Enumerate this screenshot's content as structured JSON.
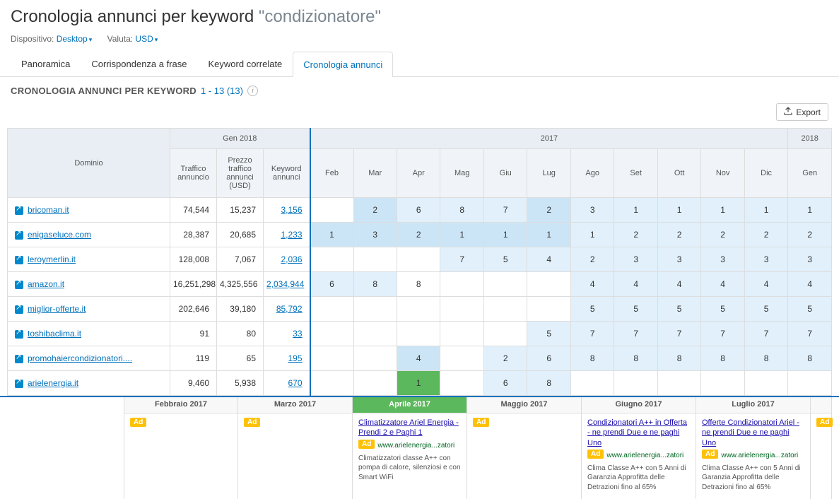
{
  "header": {
    "title_prefix": "Cronologia annunci per keyword",
    "keyword": "\"condizionatore\"",
    "device_label": "Dispositivo:",
    "device_value": "Desktop",
    "currency_label": "Valuta:",
    "currency_value": "USD"
  },
  "tabs": [
    {
      "label": "Panoramica",
      "active": false
    },
    {
      "label": "Corrispondenza a frase",
      "active": false
    },
    {
      "label": "Keyword correlate",
      "active": false
    },
    {
      "label": "Cronologia annunci",
      "active": true
    }
  ],
  "section": {
    "title": "CRONOLOGIA ANNUNCI PER KEYWORD",
    "range": "1 - 13 (13)"
  },
  "export_label": "Export",
  "table": {
    "group_headers": {
      "gen2018": "Gen 2018",
      "y2017": "2017",
      "y2018": "2018"
    },
    "columns": {
      "domain": "Dominio",
      "traffic": "Traffico annuncio",
      "price": "Prezzo traffico annunci (USD)",
      "kw": "Keyword annunci",
      "months": [
        "Feb",
        "Mar",
        "Apr",
        "Mag",
        "Giu",
        "Lug",
        "Ago",
        "Set",
        "Ott",
        "Nov",
        "Dic",
        "Gen"
      ]
    },
    "rows": [
      {
        "domain": "bricoman.it",
        "traffic": "74,544",
        "price": "15,237",
        "kw": "3,156",
        "ranks": [
          "",
          "2",
          "6",
          "8",
          "7",
          "2",
          "3",
          "1",
          "1",
          "1",
          "1",
          "1"
        ],
        "shades": [
          "",
          "2",
          "1",
          "1",
          "1",
          "2",
          "1",
          "1",
          "1",
          "1",
          "1",
          "1"
        ]
      },
      {
        "domain": "enigaseluce.com",
        "traffic": "28,387",
        "price": "20,685",
        "kw": "1,233",
        "ranks": [
          "1",
          "3",
          "2",
          "1",
          "1",
          "1",
          "1",
          "2",
          "2",
          "2",
          "2",
          "2"
        ],
        "shades": [
          "2",
          "2",
          "2",
          "2",
          "2",
          "2",
          "1",
          "1",
          "1",
          "1",
          "1",
          "1"
        ]
      },
      {
        "domain": "leroymerlin.it",
        "traffic": "128,008",
        "price": "7,067",
        "kw": "2,036",
        "ranks": [
          "",
          "",
          "",
          "7",
          "5",
          "4",
          "2",
          "3",
          "3",
          "3",
          "3",
          "3"
        ],
        "shades": [
          "",
          "",
          "",
          "1",
          "1",
          "1",
          "1",
          "1",
          "1",
          "1",
          "1",
          "1"
        ]
      },
      {
        "domain": "amazon.it",
        "traffic": "16,251,298",
        "price": "4,325,556",
        "kw": "2,034,944",
        "ranks": [
          "6",
          "8",
          "8",
          "",
          "",
          "",
          "4",
          "4",
          "4",
          "4",
          "4",
          "4"
        ],
        "shades": [
          "1",
          "1",
          "",
          "",
          "",
          "",
          "1",
          "1",
          "1",
          "1",
          "1",
          "1"
        ]
      },
      {
        "domain": "miglior-offerte.it",
        "traffic": "202,646",
        "price": "39,180",
        "kw": "85,792",
        "ranks": [
          "",
          "",
          "",
          "",
          "",
          "",
          "5",
          "5",
          "5",
          "5",
          "5",
          "5"
        ],
        "shades": [
          "",
          "",
          "",
          "",
          "",
          "",
          "1",
          "1",
          "1",
          "1",
          "1",
          "1"
        ]
      },
      {
        "domain": "toshibaclima.it",
        "traffic": "91",
        "price": "80",
        "kw": "33",
        "ranks": [
          "",
          "",
          "",
          "",
          "",
          "5",
          "7",
          "7",
          "7",
          "7",
          "7",
          "7"
        ],
        "shades": [
          "",
          "",
          "",
          "",
          "",
          "1",
          "1",
          "1",
          "1",
          "1",
          "1",
          "1"
        ]
      },
      {
        "domain": "promohaiercondizionatori....",
        "traffic": "119",
        "price": "65",
        "kw": "195",
        "ranks": [
          "",
          "",
          "4",
          "",
          "2",
          "6",
          "8",
          "8",
          "8",
          "8",
          "8",
          "8"
        ],
        "shades": [
          "",
          "",
          "2",
          "",
          "1",
          "1",
          "1",
          "1",
          "1",
          "1",
          "1",
          "1"
        ]
      },
      {
        "domain": "arielenergia.it",
        "traffic": "9,460",
        "price": "5,938",
        "kw": "670",
        "ranks": [
          "",
          "",
          "1",
          "",
          "6",
          "8",
          "",
          "",
          "",
          "",
          "",
          ""
        ],
        "shades": [
          "",
          "",
          "green",
          "",
          "1",
          "1",
          "",
          "",
          "",
          "",
          "",
          ""
        ]
      }
    ]
  },
  "ads": {
    "months": [
      "Febbraio 2017",
      "Marzo 2017",
      "Aprile 2017",
      "Maggio 2017",
      "Giugno 2017",
      "Luglio 2017"
    ],
    "active_index": 2,
    "cards": [
      {
        "badge_only": true
      },
      {
        "badge_only": true
      },
      {
        "title": "Climatizzatore Ariel Energia - Prendi 2 e Paghi 1",
        "url": "www.arielenergia...zatori",
        "desc": "Climatizzatori classe A++ con pompa di calore, silenziosi e con Smart WiFi"
      },
      {
        "badge_only": true
      },
      {
        "title": "Condizionatori A++ in Offerta - ne prendi Due e ne paghi Uno",
        "url": "www.arielenergia...zatori",
        "desc": "Clima Classe A++ con 5 Anni di Garanzia Approfitta delle Detrazioni fino al 65%"
      },
      {
        "title": "Offerte Condizionatori Ariel - ne prendi Due e ne paghi Uno",
        "url": "www.arielenergia...zatori",
        "desc": "Clima Classe A++ con 5 Anni di Garanzia Approfitta delle Detrazioni fino al 65%"
      }
    ],
    "badge_label": "Ad"
  }
}
